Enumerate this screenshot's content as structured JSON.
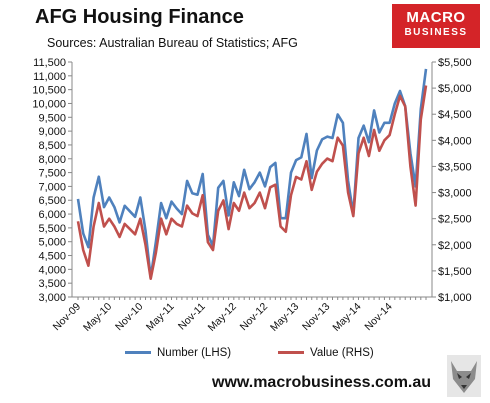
{
  "header": {
    "title": "AFG Housing Finance",
    "subtitle": "Sources: Australian Bureau of Statistics; AFG"
  },
  "brand": {
    "line1": "MACRO",
    "line2": "BUSINESS"
  },
  "legend": {
    "number_label": "Number (LHS)",
    "value_label": "Value (RHS)"
  },
  "footer": {
    "url": "www.macrobusiness.com.au"
  },
  "colors": {
    "number": "#4f81bd",
    "value": "#c0504d",
    "axis": "#888888",
    "brand": "#d42428"
  },
  "chart_data": {
    "type": "line",
    "title": "AFG Housing Finance",
    "x_tick_labels": [
      "Nov-09",
      "May-10",
      "Nov-10",
      "May-11",
      "Nov-11",
      "May-12",
      "Nov-12",
      "May-13",
      "Nov-13",
      "May-14",
      "Nov-14"
    ],
    "x_tick_index": [
      0,
      6,
      12,
      18,
      24,
      30,
      36,
      42,
      48,
      54,
      60
    ],
    "grid": false,
    "legend_position": "bottom",
    "y_left": {
      "label": "Number (LHS)",
      "range": [
        3000,
        11500
      ],
      "ticks": [
        "3,000",
        "3,500",
        "4,000",
        "4,500",
        "5,000",
        "5,500",
        "6,000",
        "6,500",
        "7,000",
        "7,500",
        "8,000",
        "8,500",
        "9,000",
        "9,500",
        "10,000",
        "10,500",
        "11,000",
        "11,500"
      ]
    },
    "y_right": {
      "label": "Value (RHS)",
      "range": [
        1000,
        5500
      ],
      "ticks": [
        "$1,000",
        "$1,500",
        "$2,000",
        "$2,500",
        "$3,000",
        "$3,500",
        "$4,000",
        "$4,500",
        "$5,000",
        "$5,500"
      ]
    },
    "series": [
      {
        "name": "Number (LHS)",
        "axis": "left",
        "values": [
          6550,
          5300,
          4800,
          6600,
          7350,
          6250,
          6600,
          6250,
          5700,
          6300,
          6100,
          5900,
          6600,
          5400,
          3700,
          5000,
          6400,
          5850,
          6450,
          6200,
          6000,
          7200,
          6750,
          6700,
          7450,
          5250,
          4850,
          6950,
          7200,
          5950,
          7150,
          6650,
          7600,
          6900,
          7150,
          7500,
          7000,
          7700,
          7850,
          5850,
          5850,
          7500,
          7950,
          8050,
          8900,
          7300,
          8300,
          8700,
          8800,
          8750,
          9600,
          9300,
          7200,
          6000,
          8750,
          9200,
          8600,
          9750,
          8950,
          9300,
          9300,
          10000,
          10450,
          9900,
          8200,
          7000,
          9800,
          11250
        ]
      },
      {
        "name": "Value (RHS)",
        "axis": "right",
        "values": [
          2450,
          1900,
          1600,
          2350,
          2800,
          2350,
          2500,
          2350,
          2150,
          2400,
          2300,
          2200,
          2500,
          2000,
          1350,
          1850,
          2500,
          2200,
          2500,
          2400,
          2350,
          2750,
          2600,
          2550,
          2950,
          2050,
          1900,
          2650,
          2850,
          2300,
          2800,
          2650,
          3000,
          2700,
          2800,
          3000,
          2700,
          3100,
          3150,
          2350,
          2250,
          2950,
          3300,
          3250,
          3600,
          3050,
          3400,
          3550,
          3650,
          3600,
          4050,
          3900,
          3000,
          2550,
          3750,
          4050,
          3700,
          4200,
          3800,
          4000,
          4100,
          4500,
          4850,
          4650,
          3500,
          2750,
          4400,
          5050
        ]
      }
    ]
  }
}
